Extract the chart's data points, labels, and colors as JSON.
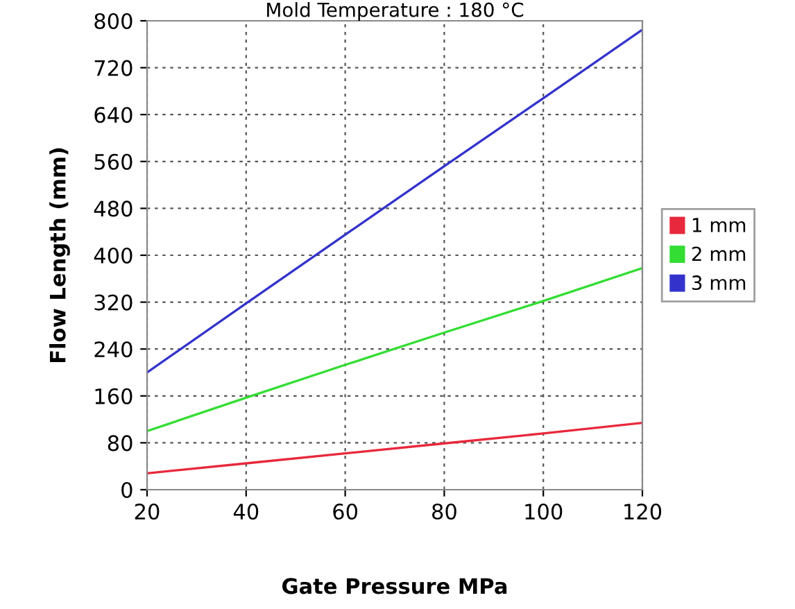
{
  "chart_data": {
    "type": "line",
    "title": "Mold Temperature : 180 °C",
    "xlabel": "Gate Pressure MPa",
    "ylabel": "Flow Length (mm)",
    "x": [
      20,
      40,
      60,
      80,
      100,
      120
    ],
    "series": [
      {
        "name": "1 mm",
        "color": "#e8283c",
        "values": [
          28,
          45,
          62,
          79,
          96,
          114
        ]
      },
      {
        "name": "2 mm",
        "color": "#33dd33",
        "values": [
          100,
          157,
          213,
          268,
          322,
          378
        ]
      },
      {
        "name": "3 mm",
        "color": "#3333cc",
        "values": [
          200,
          318,
          435,
          552,
          668,
          785
        ]
      }
    ],
    "xlim": [
      20,
      120
    ],
    "xticks": [
      20,
      40,
      60,
      80,
      100,
      120
    ],
    "ylim": [
      0,
      800
    ],
    "yticks": [
      0,
      80,
      160,
      240,
      320,
      400,
      480,
      560,
      640,
      720,
      800
    ],
    "grid": true,
    "legend": "right",
    "marker": "none",
    "line_style": "solid"
  }
}
